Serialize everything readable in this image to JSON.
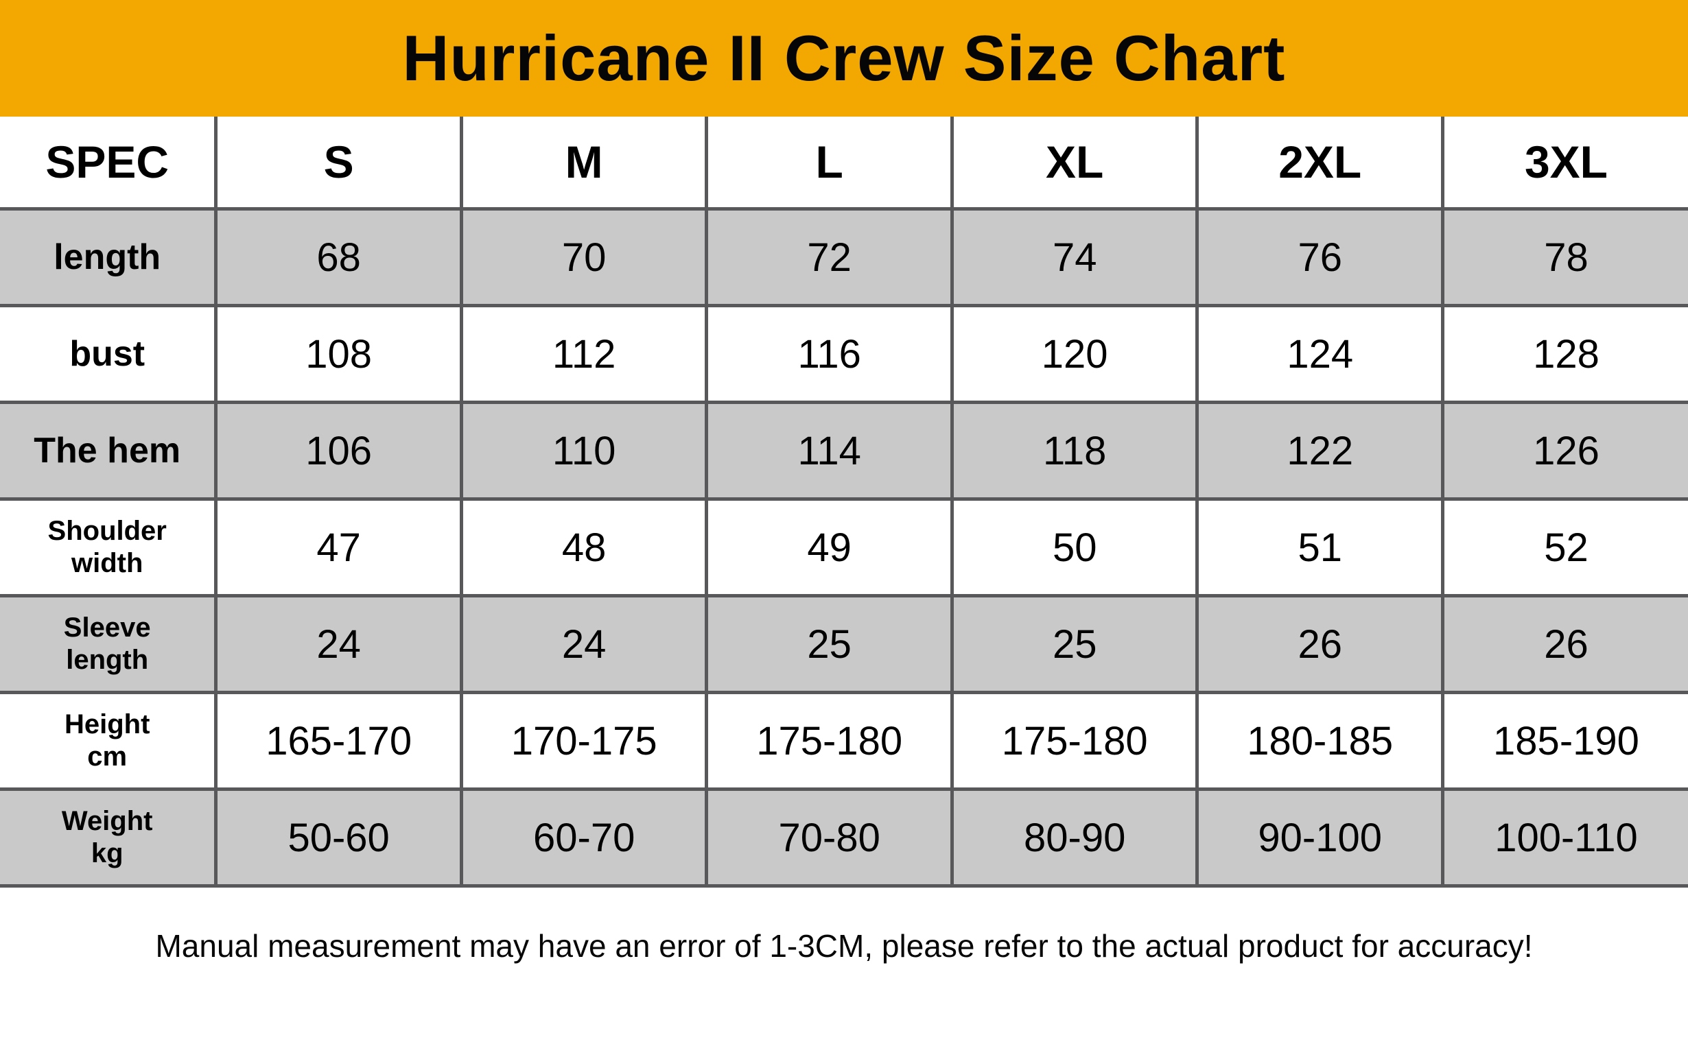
{
  "banner": {
    "title": "Hurricane II Crew Size Chart",
    "bg_color": "#F2A800"
  },
  "table": {
    "columns": [
      "SPEC",
      "S",
      "M",
      "L",
      "XL",
      "2XL",
      "3XL"
    ],
    "rows": [
      {
        "label_lines": [
          "length"
        ],
        "values": [
          "68",
          "70",
          "72",
          "74",
          "76",
          "78"
        ]
      },
      {
        "label_lines": [
          "bust"
        ],
        "values": [
          "108",
          "112",
          "116",
          "120",
          "124",
          "128"
        ]
      },
      {
        "label_lines": [
          "The hem"
        ],
        "values": [
          "106",
          "110",
          "114",
          "118",
          "122",
          "126"
        ]
      },
      {
        "label_lines": [
          "Shoulder",
          "width"
        ],
        "values": [
          "47",
          "48",
          "49",
          "50",
          "51",
          "52"
        ]
      },
      {
        "label_lines": [
          "Sleeve",
          "length"
        ],
        "values": [
          "24",
          "24",
          "25",
          "25",
          "26",
          "26"
        ]
      },
      {
        "label_lines": [
          "Height",
          "cm"
        ],
        "values": [
          "165-170",
          "170-175",
          "175-180",
          "175-180",
          "180-185",
          "185-190"
        ]
      },
      {
        "label_lines": [
          "Weight",
          "kg"
        ],
        "values": [
          "50-60",
          "60-70",
          "70-80",
          "80-90",
          "90-100",
          "100-110"
        ]
      }
    ],
    "colors": {
      "stripe": "#C9C9C9",
      "border": "#58585A"
    }
  },
  "footer": {
    "note": "Manual measurement may have an error of 1-3CM, please refer to the actual product for accuracy!"
  }
}
